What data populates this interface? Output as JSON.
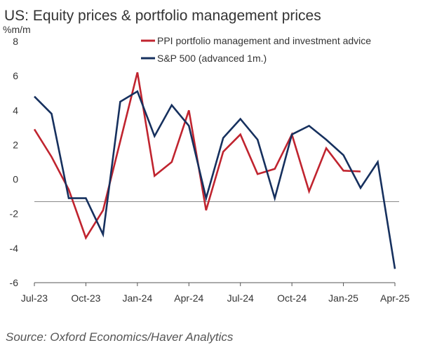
{
  "chart_data": {
    "type": "line",
    "title": "US: Equity prices & portfolio management prices",
    "ylabel": "%m/m",
    "xlabel": "",
    "ylim": [
      -6,
      8
    ],
    "yticks": [
      8,
      6,
      4,
      2,
      0,
      -2,
      -4,
      -6
    ],
    "x_labels": [
      "Jul-23",
      "Oct-23",
      "Jan-24",
      "Apr-24",
      "Jul-24",
      "Oct-24",
      "Jan-25",
      "Apr-25"
    ],
    "x_label_month_index": [
      0,
      3,
      6,
      9,
      12,
      15,
      18,
      21
    ],
    "reference_line": -1.3,
    "legend_position": "top-right",
    "series": [
      {
        "name": "PPI portfolio management and investment advice",
        "color": "#c0242f",
        "months": [
          "Jul-23",
          "Aug-23",
          "Sep-23",
          "Oct-23",
          "Nov-23",
          "Dec-23",
          "Jan-24",
          "Feb-24",
          "Mar-24",
          "Apr-24",
          "May-24",
          "Jun-24",
          "Jul-24",
          "Aug-24",
          "Sep-24",
          "Oct-24",
          "Nov-24",
          "Dec-24",
          "Jan-25",
          "Feb-25"
        ],
        "values": [
          2.9,
          1.3,
          -0.6,
          -3.4,
          -1.8,
          2.2,
          6.2,
          0.2,
          1.0,
          4.0,
          -1.8,
          1.6,
          2.6,
          0.3,
          0.6,
          2.6,
          -0.7,
          1.8,
          0.5,
          0.45
        ]
      },
      {
        "name": "S&P 500 (advanced 1m.)",
        "color": "#16305e",
        "months": [
          "Jul-23",
          "Aug-23",
          "Sep-23",
          "Oct-23",
          "Nov-23",
          "Dec-23",
          "Jan-24",
          "Feb-24",
          "Mar-24",
          "Apr-24",
          "May-24",
          "Jun-24",
          "Jul-24",
          "Aug-24",
          "Sep-24",
          "Oct-24",
          "Nov-24",
          "Dec-24",
          "Jan-25",
          "Feb-25",
          "Mar-25",
          "Apr-25"
        ],
        "values": [
          4.8,
          3.8,
          -1.1,
          -1.1,
          -3.2,
          4.5,
          5.1,
          2.5,
          4.3,
          3.1,
          -1.1,
          2.4,
          3.5,
          2.3,
          -1.1,
          2.6,
          3.1,
          2.3,
          1.4,
          -0.5,
          1.0,
          -5.2
        ]
      }
    ]
  },
  "source": "Source: Oxford Economics/Haver Analytics"
}
